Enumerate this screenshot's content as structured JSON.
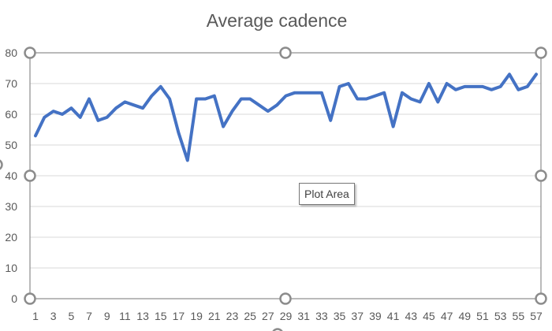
{
  "tooltip": "Plot Area",
  "chart_data": {
    "type": "line",
    "title": "Average cadence",
    "xlabel": "",
    "ylabel": "",
    "ylim": [
      0,
      80
    ],
    "y_ticks": [
      0,
      10,
      20,
      30,
      40,
      50,
      60,
      70,
      80
    ],
    "x_tick_labels": [
      "1",
      "3",
      "5",
      "7",
      "9",
      "11",
      "13",
      "15",
      "17",
      "19",
      "21",
      "23",
      "25",
      "27",
      "29",
      "31",
      "33",
      "35",
      "37",
      "39",
      "41",
      "43",
      "45",
      "47",
      "49",
      "51",
      "53",
      "55",
      "57"
    ],
    "grid": true,
    "legend": "none",
    "series_color": "#4472c4",
    "x": [
      1,
      2,
      3,
      4,
      5,
      6,
      7,
      8,
      9,
      10,
      11,
      12,
      13,
      14,
      15,
      16,
      17,
      18,
      19,
      20,
      21,
      22,
      23,
      24,
      25,
      26,
      27,
      28,
      29,
      30,
      31,
      32,
      33,
      34,
      35,
      36,
      37,
      38,
      39,
      40,
      41,
      42,
      43,
      44,
      45,
      46,
      47,
      48,
      49,
      50,
      51,
      52,
      53,
      54,
      55,
      56,
      57
    ],
    "series": [
      {
        "values": [
          53,
          59,
          61,
          60,
          62,
          59,
          65,
          58,
          59,
          62,
          64,
          63,
          62,
          66,
          69,
          65,
          54,
          45,
          65,
          65,
          66,
          56,
          61,
          65,
          65,
          63,
          61,
          63,
          66,
          67,
          67,
          67,
          67,
          58,
          69,
          70,
          65,
          65,
          66,
          67,
          56,
          67,
          65,
          64,
          70,
          64,
          70,
          68,
          69,
          69,
          69,
          68,
          69,
          73,
          68,
          69,
          73
        ]
      }
    ]
  }
}
